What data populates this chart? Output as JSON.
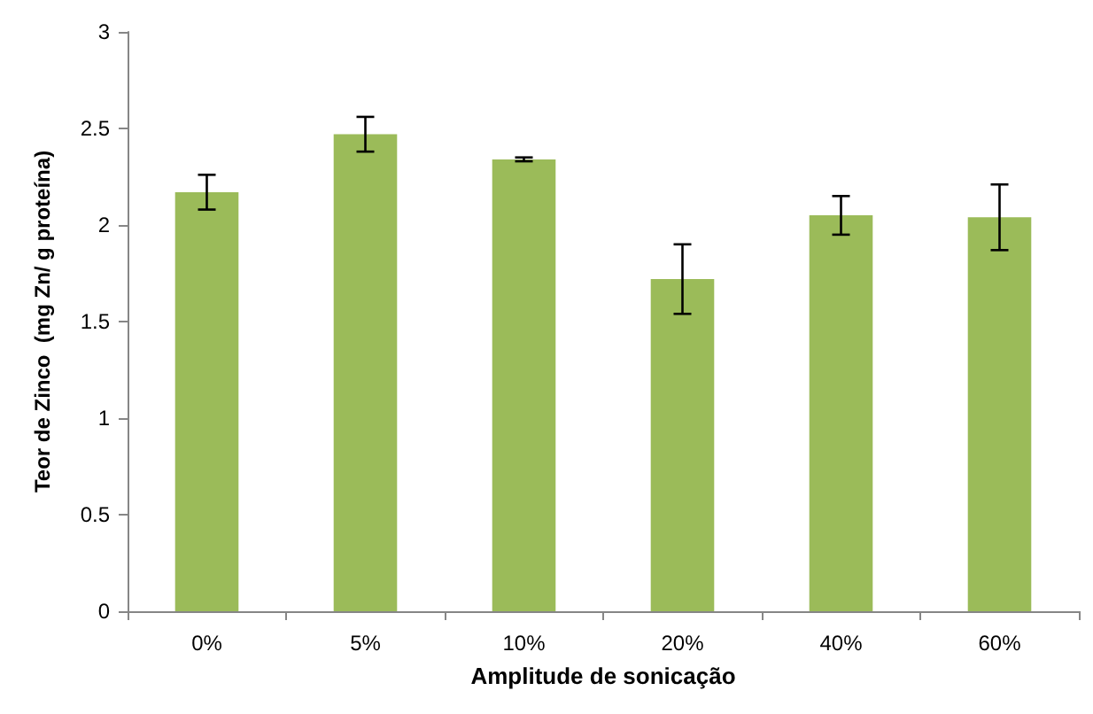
{
  "chart_data": {
    "type": "bar",
    "xlabel": "Amplitude de sonicação",
    "ylabel": "Teor de Zinco  (mg Zn/ g proteína)",
    "categories": [
      "0%",
      "5%",
      "10%",
      "20%",
      "40%",
      "60%"
    ],
    "values": [
      2.17,
      2.47,
      2.34,
      1.72,
      2.05,
      2.04
    ],
    "errors": [
      0.09,
      0.09,
      0.01,
      0.18,
      0.1,
      0.17
    ],
    "color": "#9bbb59",
    "ylim": [
      0,
      3
    ],
    "yticks": [
      0,
      0.5,
      1,
      1.5,
      2,
      2.5,
      3
    ],
    "grid": false
  }
}
